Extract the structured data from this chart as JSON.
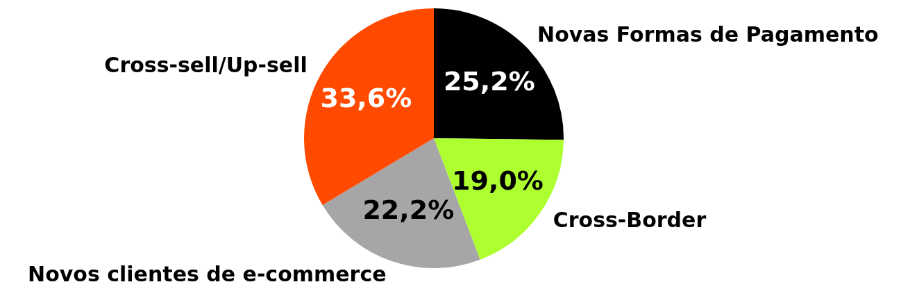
{
  "chart_data": {
    "type": "pie",
    "categories": [
      "Novas Formas de Pagamento",
      "Cross-Border",
      "Novos clientes de e-commerce",
      "Cross-sell/Up-sell"
    ],
    "values": [
      25.2,
      19.0,
      22.2,
      33.6
    ],
    "colors": [
      "#000000",
      "#adff2f",
      "#a6a6a6",
      "#ff4a00"
    ],
    "value_labels": [
      "25,2%",
      "19,0%",
      "22,2%",
      "33,6%"
    ],
    "legend": false
  }
}
